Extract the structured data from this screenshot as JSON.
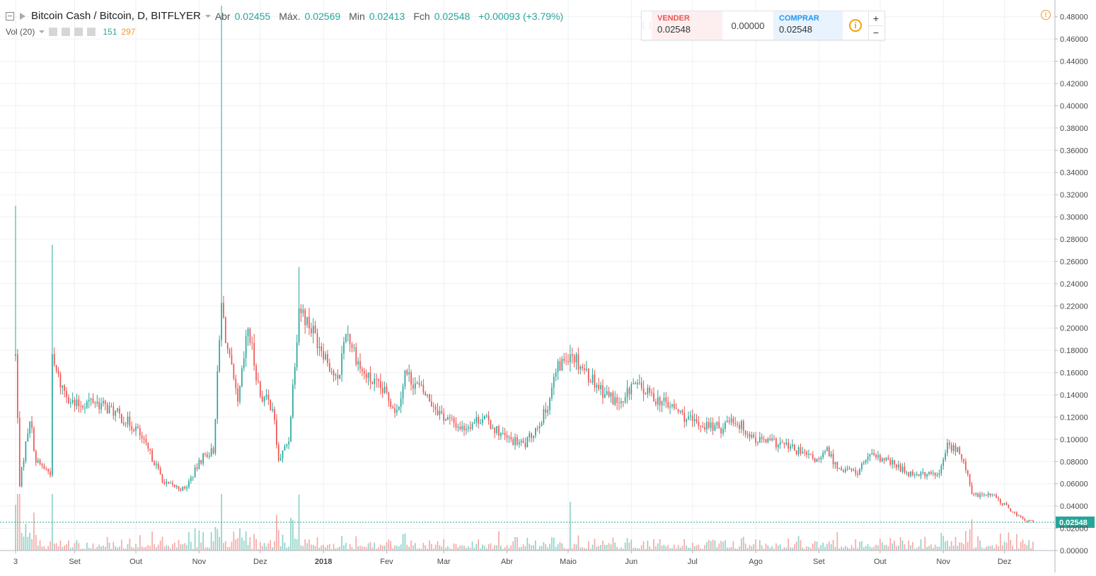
{
  "legend": {
    "symbol": "Bitcoin Cash / Bitcoin, D, BITFLYER",
    "open_label": "Abr",
    "open": "0.02455",
    "high_label": "Máx.",
    "high": "0.02569",
    "low_label": "Min",
    "low": "0.02413",
    "close_label": "Fch",
    "close": "0.02548",
    "change": "+0.00093 (+3.79%)"
  },
  "volume_legend": {
    "label": "Vol (20)",
    "value1": "151",
    "value2": "297"
  },
  "trade_panel": {
    "sell_label": "VENDER",
    "sell_price": "0.02548",
    "spread": "0.00000",
    "buy_label": "COMPRAR",
    "buy_price": "0.02548"
  },
  "colors": {
    "up": "#26a69a",
    "down": "#ef5350",
    "vol_up": "#8fd3c8",
    "vol_down": "#f5a9a7",
    "grid": "#eef0f3",
    "axis_text": "#4a4a4a",
    "last_price": "#26a69a"
  },
  "icons": [
    "collapse-icon",
    "symbol-flag-icon",
    "caret-down-icon",
    "info-icon",
    "plus-icon",
    "minus-icon",
    "alert-icon",
    "grip-icon"
  ],
  "chart_data": {
    "type": "candlestick",
    "title": "Bitcoin Cash / Bitcoin, D, BITFLYER",
    "x_start": "2017-08-03",
    "x_end": "2018-12-15",
    "x_tick_labels": [
      {
        "label": "3",
        "date": "2017-08-03"
      },
      {
        "label": "Set",
        "date": "2017-09-01"
      },
      {
        "label": "Out",
        "date": "2017-10-01"
      },
      {
        "label": "Nov",
        "date": "2017-11-01"
      },
      {
        "label": "Dez",
        "date": "2017-12-01"
      },
      {
        "label": "2018",
        "date": "2018-01-01"
      },
      {
        "label": "Fev",
        "date": "2018-02-01"
      },
      {
        "label": "Mar",
        "date": "2018-03-01"
      },
      {
        "label": "Abr",
        "date": "2018-04-01"
      },
      {
        "label": "Maio",
        "date": "2018-05-01"
      },
      {
        "label": "Jun",
        "date": "2018-06-01"
      },
      {
        "label": "Jul",
        "date": "2018-07-01"
      },
      {
        "label": "Ago",
        "date": "2018-08-01"
      },
      {
        "label": "Set",
        "date": "2018-09-01"
      },
      {
        "label": "Out",
        "date": "2018-10-01"
      },
      {
        "label": "Nov",
        "date": "2018-11-01"
      },
      {
        "label": "Dez",
        "date": "2018-12-01"
      }
    ],
    "y_range": [
      0,
      0.49
    ],
    "y_tick_labels": [
      "0.00000",
      "0.02000",
      "0.04000",
      "0.06000",
      "0.08000",
      "0.10000",
      "0.12000",
      "0.14000",
      "0.16000",
      "0.18000",
      "0.20000",
      "0.22000",
      "0.24000",
      "0.26000",
      "0.28000",
      "0.30000",
      "0.32000",
      "0.34000",
      "0.36000",
      "0.38000",
      "0.40000",
      "0.42000",
      "0.44000",
      "0.46000",
      "0.48000"
    ],
    "last_price": "0.02548",
    "price_series": [
      {
        "date": "2017-08-03",
        "close": 0.175,
        "high": 0.31
      },
      {
        "date": "2017-08-05",
        "close": 0.06
      },
      {
        "date": "2017-08-10",
        "close": 0.12
      },
      {
        "date": "2017-08-13",
        "close": 0.08
      },
      {
        "date": "2017-08-20",
        "close": 0.07
      },
      {
        "date": "2017-08-21",
        "close": 0.17,
        "high": 0.275
      },
      {
        "date": "2017-08-25",
        "close": 0.15
      },
      {
        "date": "2017-09-01",
        "close": 0.13
      },
      {
        "date": "2017-09-10",
        "close": 0.135
      },
      {
        "date": "2017-09-20",
        "close": 0.125
      },
      {
        "date": "2017-10-01",
        "close": 0.11
      },
      {
        "date": "2017-10-10",
        "close": 0.08
      },
      {
        "date": "2017-10-15",
        "close": 0.06
      },
      {
        "date": "2017-10-25",
        "close": 0.055
      },
      {
        "date": "2017-11-03",
        "close": 0.085
      },
      {
        "date": "2017-11-08",
        "close": 0.09
      },
      {
        "date": "2017-11-12",
        "close": 0.22,
        "high": 0.49
      },
      {
        "date": "2017-11-15",
        "close": 0.18
      },
      {
        "date": "2017-11-20",
        "close": 0.13
      },
      {
        "date": "2017-11-25",
        "close": 0.2
      },
      {
        "date": "2017-12-01",
        "close": 0.14
      },
      {
        "date": "2017-12-07",
        "close": 0.13
      },
      {
        "date": "2017-12-10",
        "close": 0.08
      },
      {
        "date": "2017-12-15",
        "close": 0.1
      },
      {
        "date": "2017-12-20",
        "close": 0.22,
        "high": 0.255
      },
      {
        "date": "2018-01-01",
        "close": 0.18
      },
      {
        "date": "2018-01-08",
        "close": 0.15
      },
      {
        "date": "2018-01-12",
        "close": 0.2
      },
      {
        "date": "2018-01-20",
        "close": 0.16
      },
      {
        "date": "2018-02-01",
        "close": 0.14
      },
      {
        "date": "2018-02-06",
        "close": 0.125
      },
      {
        "date": "2018-02-10",
        "close": 0.16
      },
      {
        "date": "2018-02-20",
        "close": 0.14
      },
      {
        "date": "2018-03-01",
        "close": 0.12
      },
      {
        "date": "2018-03-10",
        "close": 0.11
      },
      {
        "date": "2018-03-20",
        "close": 0.12
      },
      {
        "date": "2018-04-01",
        "close": 0.1
      },
      {
        "date": "2018-04-10",
        "close": 0.095
      },
      {
        "date": "2018-04-20",
        "close": 0.125
      },
      {
        "date": "2018-04-25",
        "close": 0.16
      },
      {
        "date": "2018-05-02",
        "close": 0.18,
        "high": 0.185
      },
      {
        "date": "2018-05-10",
        "close": 0.16
      },
      {
        "date": "2018-05-20",
        "close": 0.14
      },
      {
        "date": "2018-05-28",
        "close": 0.13
      },
      {
        "date": "2018-06-01",
        "close": 0.15
      },
      {
        "date": "2018-06-10",
        "close": 0.14
      },
      {
        "date": "2018-06-20",
        "close": 0.13
      },
      {
        "date": "2018-07-01",
        "close": 0.115
      },
      {
        "date": "2018-07-15",
        "close": 0.11
      },
      {
        "date": "2018-07-20",
        "close": 0.12
      },
      {
        "date": "2018-08-01",
        "close": 0.1
      },
      {
        "date": "2018-08-15",
        "close": 0.095
      },
      {
        "date": "2018-09-01",
        "close": 0.08
      },
      {
        "date": "2018-09-05",
        "close": 0.09
      },
      {
        "date": "2018-09-10",
        "close": 0.075
      },
      {
        "date": "2018-09-20",
        "close": 0.07
      },
      {
        "date": "2018-09-25",
        "close": 0.085
      },
      {
        "date": "2018-10-05",
        "close": 0.08
      },
      {
        "date": "2018-10-15",
        "close": 0.07
      },
      {
        "date": "2018-10-30",
        "close": 0.068
      },
      {
        "date": "2018-11-03",
        "close": 0.095
      },
      {
        "date": "2018-11-08",
        "close": 0.09
      },
      {
        "date": "2018-11-12",
        "close": 0.075
      },
      {
        "date": "2018-11-15",
        "close": 0.05
      },
      {
        "date": "2018-11-25",
        "close": 0.05
      },
      {
        "date": "2018-12-05",
        "close": 0.035
      },
      {
        "date": "2018-12-10",
        "close": 0.028
      },
      {
        "date": "2018-12-15",
        "close": 0.0255
      }
    ]
  }
}
